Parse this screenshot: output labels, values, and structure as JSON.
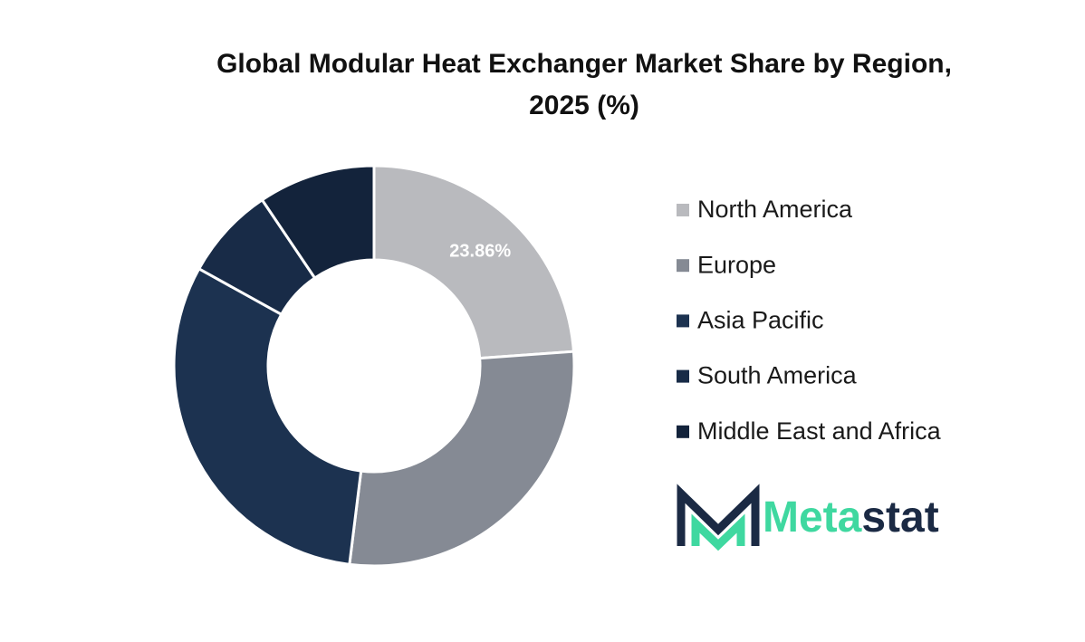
{
  "chart_data": {
    "type": "donut",
    "title": "Global Modular Heat Exchanger Market Share by Region, 2025 (%)",
    "categories": [
      "North America",
      "Europe",
      "Asia Pacific",
      "South America",
      "Middle East and Africa"
    ],
    "values": [
      23.86,
      28.1,
      31.1,
      7.5,
      9.44
    ],
    "value_labels": [
      "23.86%",
      null,
      null,
      null,
      null
    ],
    "colors": [
      "#b9babe",
      "#858a94",
      "#1c3250",
      "#182b47",
      "#13233b"
    ],
    "legend": "right"
  },
  "logo": [
    "Meta",
    "stat"
  ]
}
